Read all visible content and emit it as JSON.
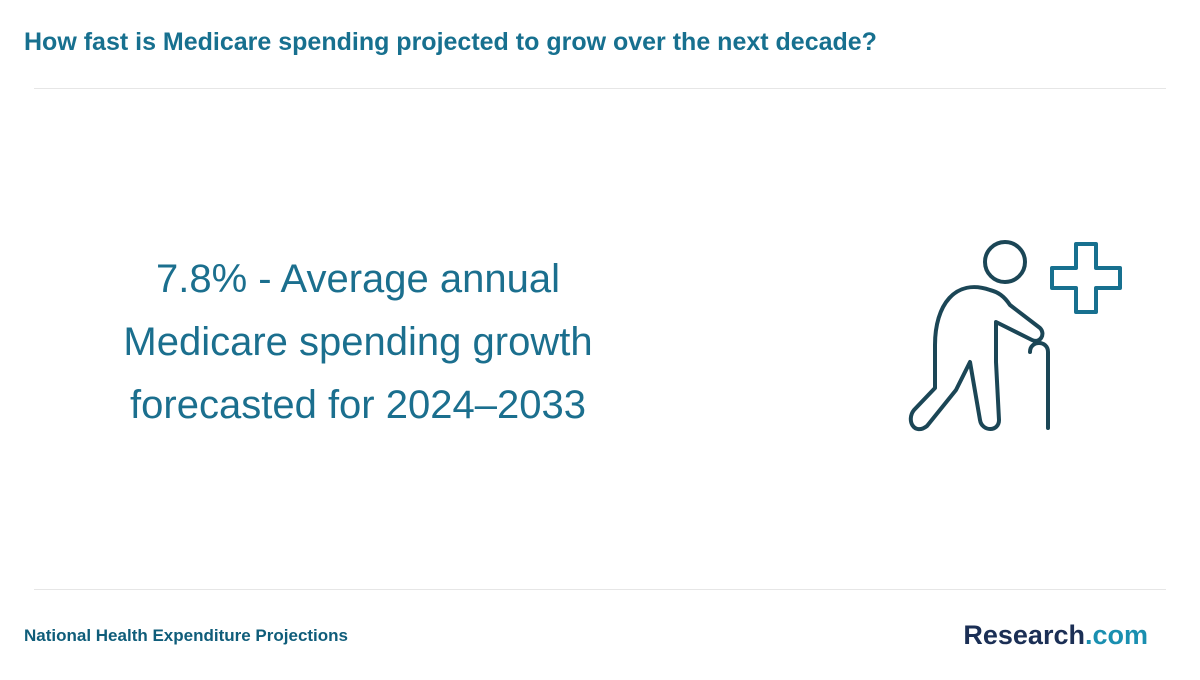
{
  "header": {
    "title": "How fast is Medicare spending projected to grow over the next decade?"
  },
  "stat": {
    "lines": [
      "7.8% - Average annual",
      "Medicare spending growth",
      "forecasted for 2024–2033"
    ]
  },
  "footer": {
    "source": "National Health Expenditure Projections",
    "logo": {
      "name": "Research",
      "suffix": ".com"
    }
  }
}
